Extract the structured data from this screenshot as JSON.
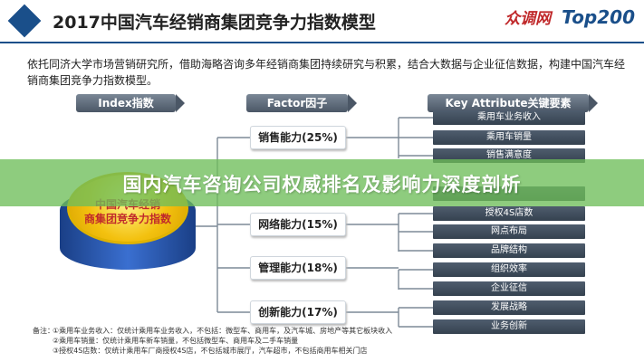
{
  "header": {
    "title": "2017中国汽车经销商集团竞争力指数模型",
    "logo_name": "众调网",
    "logo_sub": "Top200"
  },
  "intro": "依托同济大学市场营销研究所，借助海略咨询多年经销商集团持续研究与积累，结合大数据与企业征信数据，构建中国汽车经销商集团竞争力指数模型。",
  "columns": {
    "index": "Index指数",
    "factor": "Factor因子",
    "key": "Key Attribute关键要素"
  },
  "index_disc": {
    "line1": "中国汽车经销",
    "line2": "商集团竞争力指数"
  },
  "factors": [
    {
      "label": "销售能力(25%)"
    },
    {
      "label": "网络能力(15%)"
    },
    {
      "label": "管理能力(18%)"
    },
    {
      "label": "创新能力(17%)"
    }
  ],
  "key_attributes": [
    "乘用车业务收入",
    "乘用车销量",
    "销售满意度",
    "",
    "授权4S店数",
    "网点布局",
    "品牌结构",
    "组织效率",
    "企业征信",
    "发展战略",
    "业务创新"
  ],
  "banner": "国内汽车咨询公司权威排名及影响力深度剖析",
  "notes": {
    "label": "备注：",
    "lines": [
      "①乘用车业务收入：仅统计乘用车业务收入，不包括：微型车、商用车，及汽车城、房地产等其它板块收入",
      "②乘用车销量：仅统计乘用车新车销量，不包括微型车、商用车及二手车销量",
      "③授权4S店数：仅统计乘用车厂商授权4S店，不包括城市展厅，汽车超市，不包括商用车相关门店"
    ]
  },
  "colors": {
    "header_rule": "#1a4f8a",
    "key_bar": "#3b4957",
    "banner": "#6ebe5a",
    "disc_gold": "#f3c10f",
    "disc_blue": "#2a56b0"
  }
}
